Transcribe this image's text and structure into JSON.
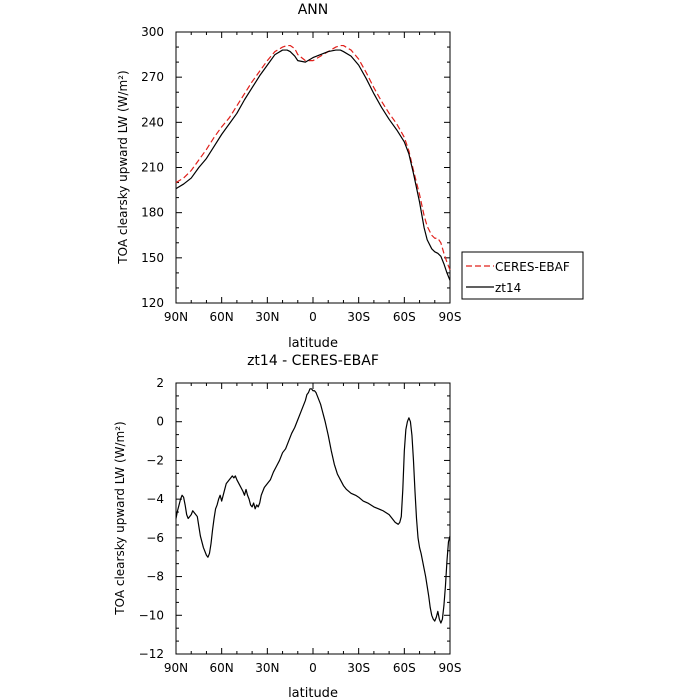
{
  "chart_data": [
    {
      "type": "line",
      "title": "ANN",
      "xlabel": "latitude",
      "ylabel": "TOA clearsky upward LW (W/m²)",
      "xlim": [
        90,
        -90
      ],
      "ylim": [
        120,
        300
      ],
      "x_ticks": [
        90,
        60,
        30,
        0,
        -30,
        -60,
        -90
      ],
      "x_tick_labels": [
        "90N",
        "60N",
        "30N",
        "0",
        "30S",
        "60S",
        "90S"
      ],
      "y_ticks": [
        120,
        150,
        180,
        210,
        240,
        270,
        300
      ],
      "y_tick_labels": [
        "120",
        "150",
        "180",
        "210",
        "240",
        "270",
        "300"
      ],
      "legend": "right-outside",
      "series": [
        {
          "name": "CERES-EBAF",
          "color": "#e0201b",
          "dash": "dashed",
          "x": [
            90,
            85,
            80,
            75,
            70,
            65,
            60,
            55,
            50,
            45,
            40,
            35,
            30,
            25,
            20,
            17,
            15,
            12,
            10,
            5,
            0,
            -5,
            -10,
            -15,
            -18,
            -20,
            -25,
            -30,
            -35,
            -40,
            -45,
            -50,
            -55,
            -60,
            -63,
            -66,
            -70,
            -73,
            -75,
            -78,
            -80,
            -82,
            -84,
            -86,
            -88,
            -90
          ],
          "y": [
            200,
            203,
            208,
            215,
            222,
            230,
            237,
            243,
            251,
            259,
            267,
            274,
            281,
            287,
            290,
            291,
            291,
            289,
            285,
            281,
            281,
            284,
            287,
            290,
            291,
            291,
            288,
            282,
            273,
            263,
            254,
            246,
            239,
            230,
            221,
            208,
            192,
            178,
            171,
            165,
            163,
            163,
            160,
            153,
            147,
            142
          ]
        },
        {
          "name": "zt14",
          "color": "#000000",
          "dash": "solid",
          "x": [
            90,
            85,
            80,
            75,
            70,
            65,
            60,
            55,
            50,
            45,
            40,
            35,
            30,
            25,
            20,
            17,
            15,
            12,
            10,
            5,
            0,
            -5,
            -10,
            -15,
            -18,
            -20,
            -25,
            -30,
            -35,
            -40,
            -45,
            -50,
            -55,
            -60,
            -63,
            -66,
            -70,
            -73,
            -75,
            -78,
            -80,
            -82,
            -84,
            -86,
            -88,
            -90
          ],
          "y": [
            196,
            199,
            203,
            210,
            216,
            224,
            232,
            239,
            246,
            255,
            263,
            271,
            278,
            285,
            288,
            288,
            287,
            284,
            281,
            280,
            283,
            285,
            287,
            288,
            288,
            287,
            284,
            278,
            269,
            259,
            250,
            242,
            235,
            227,
            219,
            206,
            187,
            170,
            162,
            156,
            154,
            153,
            151,
            146,
            140,
            135
          ]
        }
      ]
    },
    {
      "type": "line",
      "title": "zt14 - CERES-EBAF",
      "xlabel": "latitude",
      "ylabel": "TOA clearsky upward LW (W/m²)",
      "xlim": [
        90,
        -90
      ],
      "ylim": [
        -12,
        2
      ],
      "x_ticks": [
        90,
        60,
        30,
        0,
        -30,
        -60,
        -90
      ],
      "x_tick_labels": [
        "90N",
        "60N",
        "30N",
        "0",
        "30S",
        "60S",
        "90S"
      ],
      "y_ticks": [
        -12,
        -10,
        -8,
        -6,
        -4,
        -2,
        0,
        2
      ],
      "y_tick_labels": [
        "−12",
        "−10",
        "−8",
        "−6",
        "−4",
        "−2",
        "0",
        "2"
      ],
      "series": [
        {
          "name": "zt14",
          "color": "#000000",
          "dash": "solid",
          "x": [
            90,
            89,
            87,
            86,
            85,
            84,
            83,
            82,
            80,
            79,
            77,
            76,
            75,
            74,
            72,
            70,
            69,
            68,
            67,
            66,
            65,
            64,
            63,
            62,
            61,
            60,
            58,
            57,
            55,
            54,
            53,
            52,
            51,
            50,
            48,
            46,
            45,
            44,
            43,
            42,
            41,
            40,
            39,
            38,
            37,
            36,
            35,
            34,
            33,
            32,
            30,
            28,
            26,
            24,
            22,
            20,
            18,
            16,
            14,
            12,
            10,
            8,
            6,
            5,
            4,
            3,
            2,
            1,
            0,
            -1,
            -2,
            -3,
            -4,
            -5,
            -6,
            -7,
            -8,
            -10,
            -12,
            -14,
            -16,
            -18,
            -20,
            -22,
            -25,
            -28,
            -30,
            -33,
            -36,
            -40,
            -43,
            -46,
            -50,
            -52,
            -54,
            -56,
            -57,
            -58,
            -59,
            -60,
            -61,
            -62,
            -63,
            -64,
            -65,
            -66,
            -67,
            -68,
            -69,
            -70,
            -71,
            -72,
            -73,
            -74,
            -75,
            -76,
            -77,
            -78,
            -79,
            -80,
            -81,
            -82,
            -83,
            -84,
            -85,
            -86,
            -87,
            -88,
            -89,
            -90
          ],
          "y": [
            -5.0,
            -4.6,
            -4.0,
            -3.8,
            -3.9,
            -4.3,
            -4.8,
            -5.0,
            -4.8,
            -4.6,
            -4.8,
            -4.9,
            -5.4,
            -5.9,
            -6.5,
            -6.9,
            -7.0,
            -6.8,
            -6.3,
            -5.6,
            -5.0,
            -4.5,
            -4.3,
            -4.0,
            -3.8,
            -4.1,
            -3.5,
            -3.2,
            -3.0,
            -2.9,
            -2.8,
            -2.9,
            -2.8,
            -3.0,
            -3.3,
            -3.6,
            -3.8,
            -3.5,
            -3.8,
            -4.0,
            -4.3,
            -4.4,
            -4.2,
            -4.5,
            -4.3,
            -4.4,
            -4.2,
            -3.8,
            -3.6,
            -3.4,
            -3.2,
            -3.0,
            -2.6,
            -2.3,
            -2.0,
            -1.6,
            -1.4,
            -1.0,
            -0.6,
            -0.3,
            0.1,
            0.5,
            0.9,
            1.1,
            1.4,
            1.5,
            1.7,
            1.7,
            1.6,
            1.6,
            1.5,
            1.3,
            1.1,
            0.9,
            0.6,
            0.3,
            0.0,
            -0.7,
            -1.5,
            -2.2,
            -2.7,
            -3.0,
            -3.3,
            -3.5,
            -3.7,
            -3.8,
            -3.9,
            -4.1,
            -4.2,
            -4.4,
            -4.5,
            -4.6,
            -4.8,
            -5.0,
            -5.2,
            -5.3,
            -5.2,
            -4.9,
            -3.5,
            -1.5,
            -0.4,
            0.0,
            0.2,
            0.0,
            -0.7,
            -2.0,
            -3.6,
            -5.0,
            -6.0,
            -6.5,
            -6.8,
            -7.2,
            -7.6,
            -8.0,
            -8.5,
            -9.0,
            -9.6,
            -10.0,
            -10.2,
            -10.3,
            -10.1,
            -9.8,
            -10.2,
            -10.4,
            -10.2,
            -9.5,
            -8.5,
            -7.2,
            -6.2,
            -5.9
          ]
        }
      ]
    }
  ]
}
